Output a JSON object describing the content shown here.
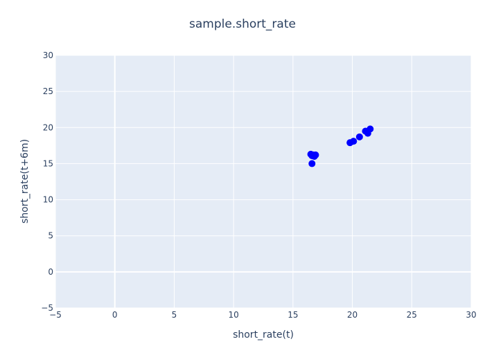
{
  "chart_data": {
    "type": "scatter",
    "title": "sample.short_rate",
    "xlabel": "short_rate(t)",
    "ylabel": "short_rate(t+6m)",
    "xlim": [
      -5,
      30
    ],
    "ylim": [
      -5,
      30
    ],
    "x_ticks": [
      "−5",
      "0",
      "5",
      "10",
      "15",
      "20",
      "25",
      "30"
    ],
    "y_ticks": [
      "−5",
      "0",
      "5",
      "10",
      "15",
      "20",
      "25",
      "30"
    ],
    "grid": true,
    "series": [
      {
        "color": "#0000ff",
        "points": [
          {
            "x": 16.5,
            "y": 16.3
          },
          {
            "x": 16.6,
            "y": 16.1
          },
          {
            "x": 16.7,
            "y": 16.2
          },
          {
            "x": 16.9,
            "y": 16.2
          },
          {
            "x": 16.8,
            "y": 16.0
          },
          {
            "x": 16.6,
            "y": 15.0
          },
          {
            "x": 19.8,
            "y": 17.9
          },
          {
            "x": 20.1,
            "y": 18.1
          },
          {
            "x": 20.6,
            "y": 18.7
          },
          {
            "x": 21.1,
            "y": 19.5
          },
          {
            "x": 21.3,
            "y": 19.2
          },
          {
            "x": 21.5,
            "y": 19.8
          }
        ]
      }
    ]
  },
  "colors": {
    "plot_background": "#e5ecf6",
    "grid": "#ffffff",
    "text": "#2a3f5f",
    "marker": "#0000ff"
  }
}
